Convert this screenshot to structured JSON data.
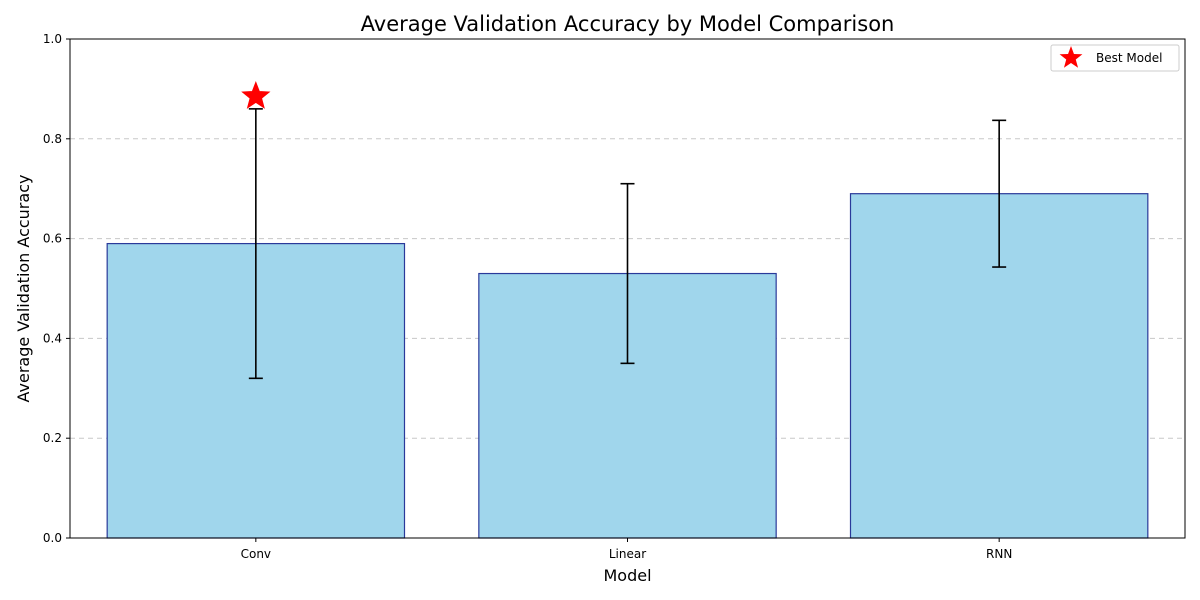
{
  "chart_data": {
    "type": "bar",
    "title": "Average Validation Accuracy by Model Comparison",
    "xlabel": "Model",
    "ylabel": "Average Validation Accuracy",
    "categories": [
      "Conv",
      "Linear",
      "RNN"
    ],
    "values": [
      0.59,
      0.53,
      0.69
    ],
    "errors": [
      0.27,
      0.18,
      0.147
    ],
    "ylim": [
      0,
      1.0
    ],
    "yticks": [
      0.0,
      0.2,
      0.4,
      0.6,
      0.8,
      1.0
    ],
    "ytick_labels": [
      "0.0",
      "0.2",
      "0.4",
      "0.6",
      "0.8",
      "1.0"
    ],
    "grid": "y-dashed",
    "best_model": {
      "category": "Conv",
      "value": 0.885,
      "marker": "star-icon"
    },
    "legend": {
      "placement": "top-right",
      "entries": [
        "Best Model"
      ]
    },
    "colors": {
      "bar_fill": "#a0d6ec",
      "bar_edge": "#2a3a9a",
      "error_bar": "#000000",
      "star": "#ff0000",
      "grid": "#c8c8c8"
    }
  }
}
